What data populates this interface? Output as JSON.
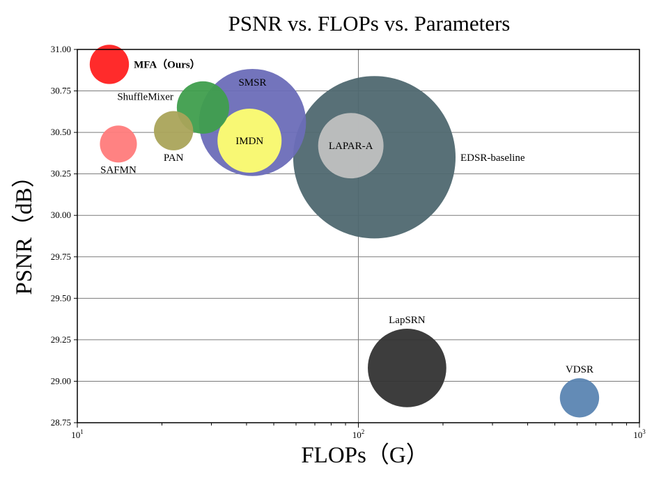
{
  "chart_data": {
    "type": "scatter",
    "title": "PSNR vs. FLOPs vs. Parameters",
    "xlabel": "FLOPs（G）",
    "ylabel": "PSNR（dB）",
    "x_scale": "log",
    "xlim": [
      10,
      1000
    ],
    "ylim": [
      28.75,
      31.0
    ],
    "x_ticks": [
      {
        "value": 10,
        "base": "10",
        "exp": "1"
      },
      {
        "value": 100,
        "base": "10",
        "exp": "2"
      },
      {
        "value": 1000,
        "base": "10",
        "exp": "3"
      }
    ],
    "y_ticks": [
      "31.00",
      "30.75",
      "30.50",
      "30.25",
      "30.00",
      "29.75",
      "29.50",
      "29.25",
      "29.00",
      "28.75"
    ],
    "grid": true,
    "points": [
      {
        "name": "MFA（Ours）",
        "flops": 13,
        "psnr": 30.91,
        "size": 0.9,
        "color": "#ff2020",
        "label_pos": "right",
        "bold": true
      },
      {
        "name": "SMSR",
        "flops": 42,
        "psnr": 30.56,
        "size": 6.7,
        "color": "#6b6db8",
        "label_pos": "inside-top",
        "bold": false
      },
      {
        "name": "ShuffleMixer",
        "flops": 28,
        "psnr": 30.65,
        "size": 1.6,
        "color": "#3f9e4d",
        "label_pos": "left",
        "bold": false
      },
      {
        "name": "PAN",
        "flops": 22,
        "psnr": 30.51,
        "size": 0.9,
        "color": "#aaa45a",
        "label_pos": "below",
        "bold": false
      },
      {
        "name": "SAFMN",
        "flops": 14,
        "psnr": 30.43,
        "size": 0.8,
        "color": "#ff7b7b",
        "label_pos": "below",
        "bold": false
      },
      {
        "name": "IMDN",
        "flops": 41,
        "psnr": 30.45,
        "size": 2.4,
        "color": "#ffff70",
        "label_pos": "center",
        "bold": false
      },
      {
        "name": "EDSR-baseline",
        "flops": 114,
        "psnr": 30.35,
        "size": 15.4,
        "color": "#4f6870",
        "label_pos": "right",
        "bold": false
      },
      {
        "name": "LAPAR-A",
        "flops": 94,
        "psnr": 30.42,
        "size": 2.5,
        "color": "#c0c0c0",
        "label_pos": "center",
        "bold": false
      },
      {
        "name": "LapSRN",
        "flops": 149,
        "psnr": 29.08,
        "size": 3.6,
        "color": "#333333",
        "label_pos": "above",
        "bold": false
      },
      {
        "name": "VDSR",
        "flops": 612,
        "psnr": 28.9,
        "size": 0.9,
        "color": "#5b85b2",
        "label_pos": "above",
        "bold": false
      }
    ]
  }
}
